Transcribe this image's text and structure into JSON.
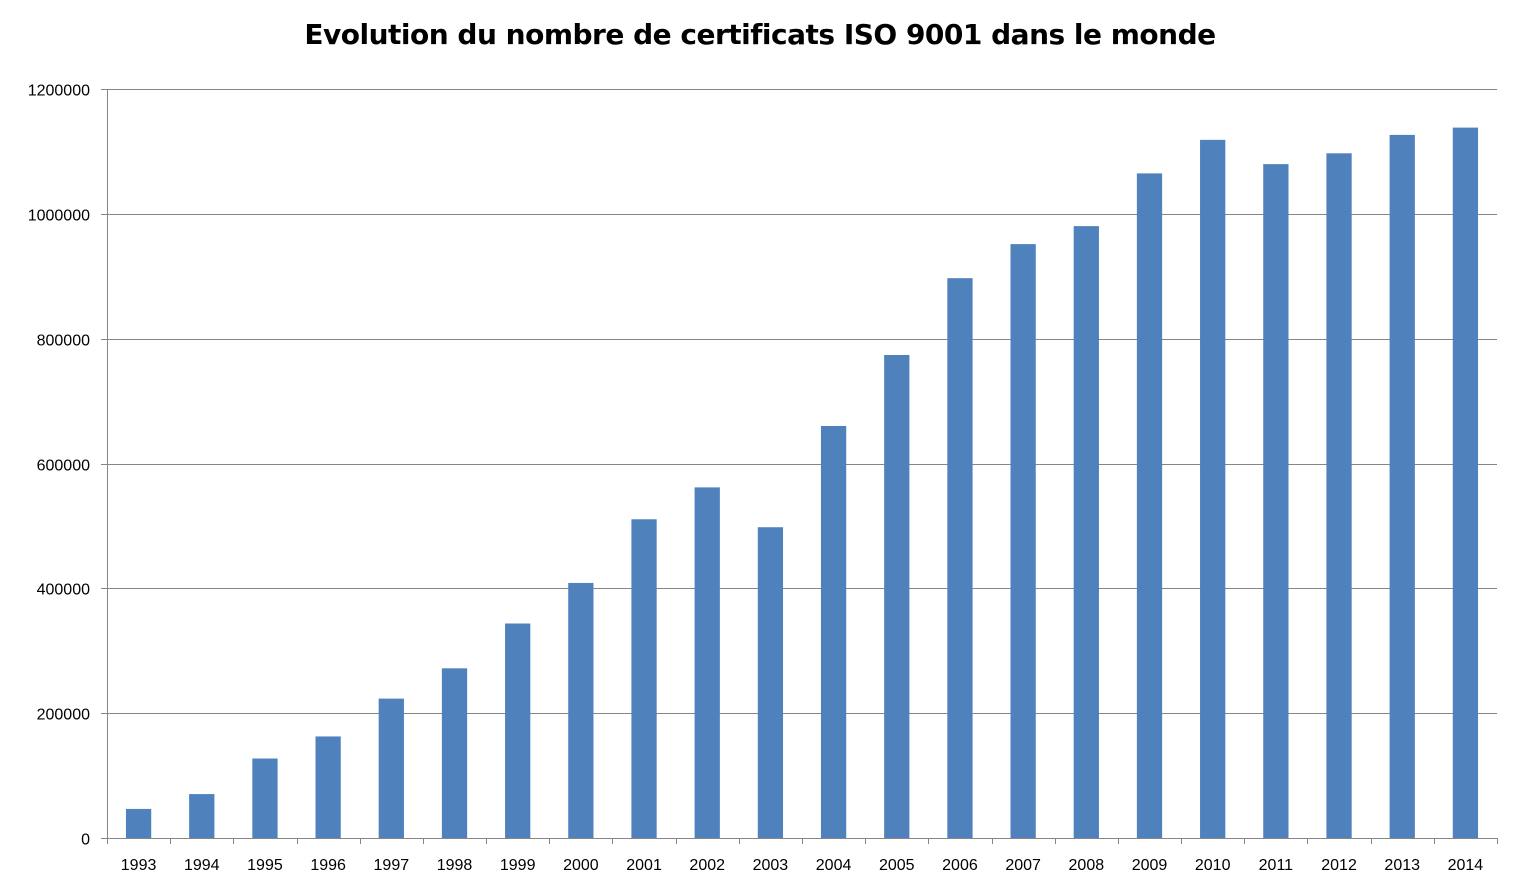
{
  "chart_data": {
    "type": "bar",
    "title": "Evolution du nombre de certificats ISO 9001 dans le monde",
    "xlabel": "",
    "ylabel": "",
    "categories": [
      "1993",
      "1994",
      "1995",
      "1996",
      "1997",
      "1998",
      "1999",
      "2000",
      "2001",
      "2002",
      "2003",
      "2004",
      "2005",
      "2006",
      "2007",
      "2008",
      "2009",
      "2010",
      "2011",
      "2012",
      "2013",
      "2014"
    ],
    "values": [
      46571,
      70364,
      127349,
      162701,
      223299,
      271847,
      343643,
      408631,
      510616,
      561747,
      497919,
      660132,
      773867,
      896929,
      951486,
      980322,
      1064785,
      1118510,
      1079647,
      1096987,
      1126460,
      1138155
    ],
    "ylim": [
      0,
      1200000
    ],
    "yticks": [
      "0",
      "200000",
      "400000",
      "600000",
      "800000",
      "1000000",
      "1200000"
    ],
    "grid": true,
    "legend": "none",
    "colors": {
      "bar": "#4f81bd",
      "grid": "#868686",
      "axis": "#868686"
    }
  }
}
